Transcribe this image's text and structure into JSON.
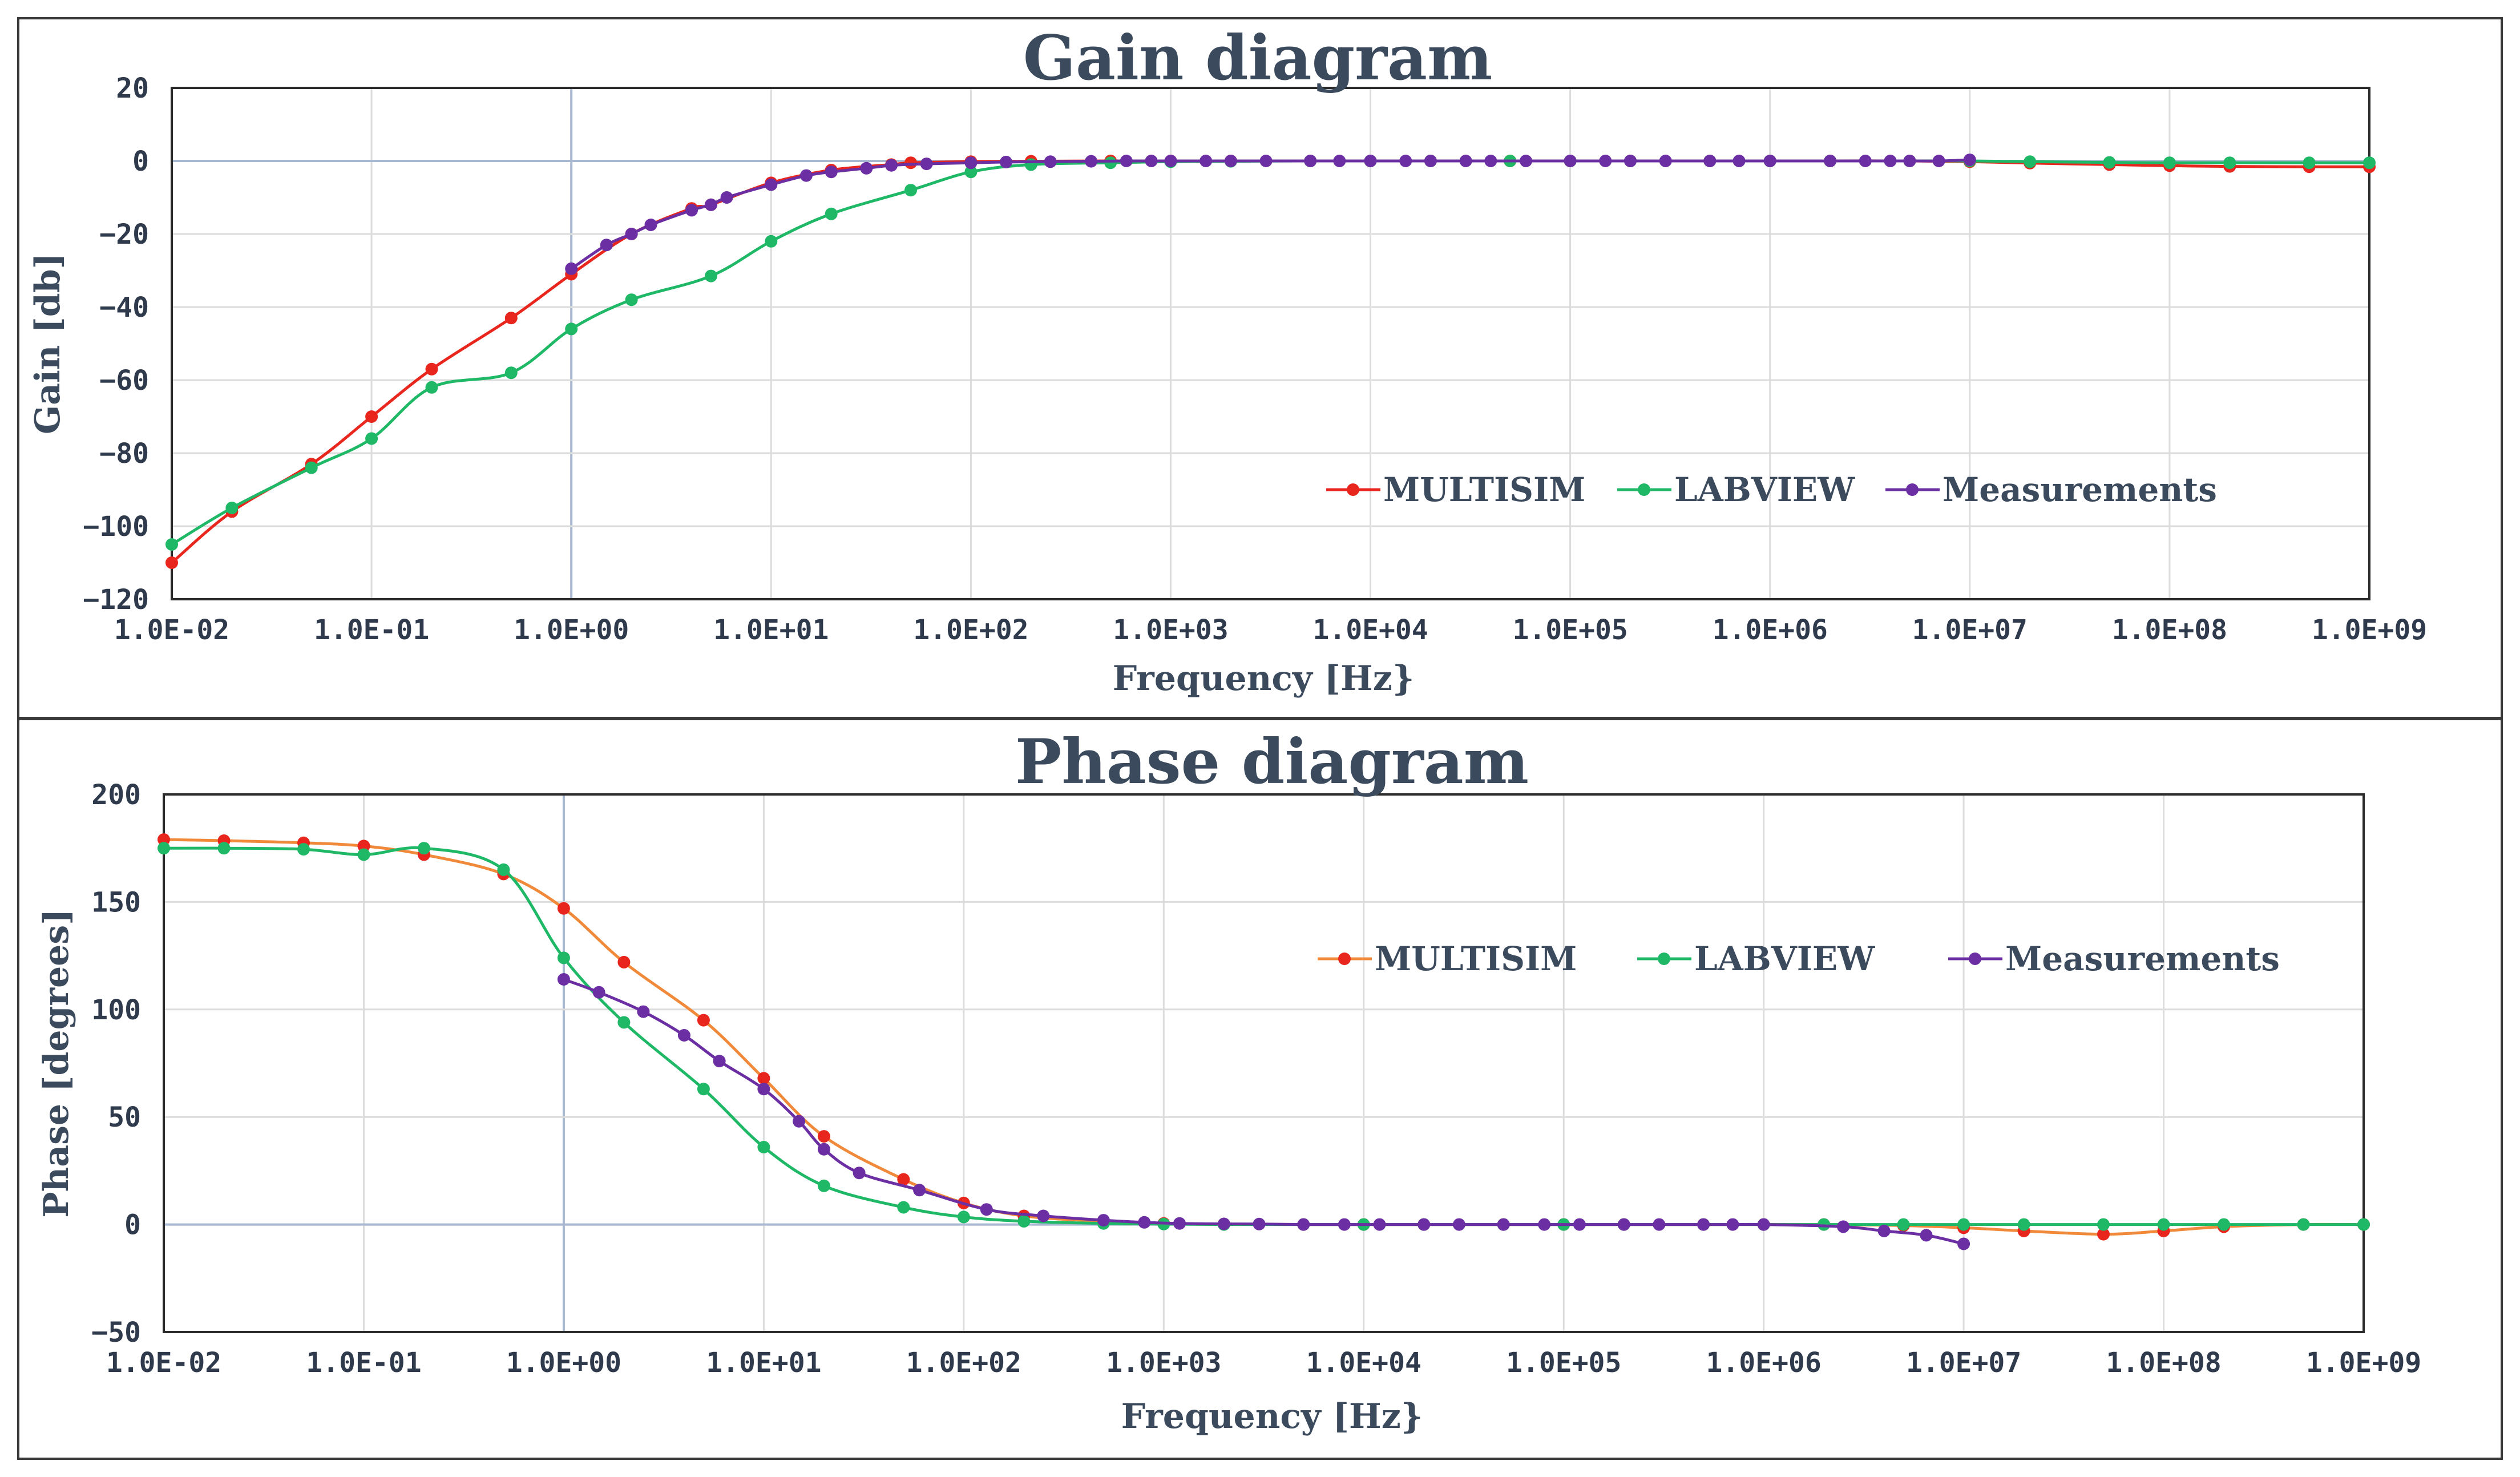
{
  "chart_data": [
    {
      "type": "line",
      "title": "Gain diagram",
      "xlabel": "Frequency [Hz}",
      "ylabel": "Gain [db]",
      "x_scale": "log",
      "xlim": [
        0.01,
        1000000000
      ],
      "ylim": [
        -120,
        20
      ],
      "grid": true,
      "legend": "center-right",
      "x_tick_labels": [
        "1.0E-02",
        "1.0E-01",
        "1.0E+00",
        "1.0E+01",
        "1.0E+02",
        "1.0E+03",
        "1.0E+04",
        "1.0E+05",
        "1.0E+06",
        "1.0E+07",
        "1.0E+08",
        "1.0E+09"
      ],
      "y_tick_labels": [
        "20",
        "0",
        "−20",
        "−40",
        "−60",
        "−80",
        "−100",
        "−120"
      ],
      "series": [
        {
          "name": "MULTISIM",
          "color": "#e8261d",
          "x": [
            0.01,
            0.02,
            0.05,
            0.1,
            0.2,
            0.5,
            1,
            2,
            4,
            5,
            10,
            20,
            40,
            50,
            100,
            200,
            500,
            1000,
            2000,
            5000,
            10000,
            20000,
            50000,
            100000,
            200000,
            500000,
            1000000,
            2000000,
            5000000,
            10000000,
            20000000,
            50000000,
            100000000,
            200000000,
            500000000,
            1000000000
          ],
          "y": [
            -110,
            -96,
            -83,
            -70,
            -57,
            -43,
            -31,
            -20,
            -13,
            -12,
            -6,
            -2.5,
            -1,
            -0.5,
            -0.2,
            -0.1,
            0,
            0,
            0,
            0,
            0,
            0,
            0,
            0,
            0,
            0,
            0,
            0,
            0,
            -0.2,
            -0.6,
            -1,
            -1.3,
            -1.5,
            -1.6,
            -1.6
          ]
        },
        {
          "name": "LABVIEW",
          "color": "#1fb866",
          "x": [
            0.01,
            0.02,
            0.05,
            0.1,
            0.2,
            0.5,
            1,
            2,
            5,
            10,
            20,
            50,
            100,
            200,
            500,
            1000,
            2000,
            5000,
            10000,
            20000,
            50000,
            100000,
            200000,
            500000,
            1000000,
            2000000,
            5000000,
            10000000,
            20000000,
            50000000,
            100000000,
            200000000,
            500000000,
            1000000000
          ],
          "y": [
            -105,
            -95,
            -84,
            -76,
            -62,
            -58,
            -46,
            -38,
            -31.5,
            -22,
            -14.5,
            -8,
            -3,
            -1,
            -0.5,
            -0.2,
            -0.1,
            0,
            0,
            0,
            0,
            0,
            0,
            0,
            0,
            0,
            0,
            0,
            -0.2,
            -0.4,
            -0.5,
            -0.5,
            -0.5,
            -0.5
          ]
        },
        {
          "name": "Measurements",
          "color": "#6b2fa3",
          "x": [
            1,
            1.5,
            2,
            2.5,
            4,
            5,
            6,
            10,
            15,
            20,
            30,
            40,
            60,
            100,
            150,
            250,
            400,
            600,
            800,
            1000,
            1500,
            2000,
            3000,
            5000,
            7000,
            10000,
            15000,
            20000,
            30000,
            40000,
            60000,
            100000,
            150000,
            200000,
            300000,
            500000,
            700000,
            1000000,
            2000000,
            3000000,
            4000000,
            5000000,
            7000000,
            10000000
          ],
          "y": [
            -29.5,
            -23,
            -20,
            -17.5,
            -13.5,
            -12,
            -10,
            -6.5,
            -4,
            -3,
            -2,
            -1.2,
            -0.8,
            -0.5,
            -0.3,
            -0.2,
            -0.1,
            0,
            0,
            0,
            0,
            0,
            0,
            0,
            0,
            0,
            0,
            0,
            0,
            0,
            0,
            0,
            0,
            0,
            0,
            0,
            0,
            0,
            0,
            0,
            0,
            0,
            0,
            0.3
          ]
        }
      ]
    },
    {
      "type": "line",
      "title": "Phase diagram",
      "xlabel": "Frequency [Hz}",
      "ylabel": "Phase [degrees]",
      "x_scale": "log",
      "xlim": [
        0.01,
        1000000000
      ],
      "ylim": [
        -50,
        200
      ],
      "grid": true,
      "legend": "top-right",
      "x_tick_labels": [
        "1.0E-02",
        "1.0E-01",
        "1.0E+00",
        "1.0E+01",
        "1.0E+02",
        "1.0E+03",
        "1.0E+04",
        "1.0E+05",
        "1.0E+06",
        "1.0E+07",
        "1.0E+08",
        "1.0E+09"
      ],
      "y_tick_labels": [
        "200",
        "150",
        "100",
        "50",
        "0",
        "−50"
      ],
      "series": [
        {
          "name": "MULTISIM",
          "color": "#f08a3a",
          "marker_color": "#e8261d",
          "x": [
            0.01,
            0.02,
            0.05,
            0.1,
            0.2,
            0.5,
            1,
            2,
            5,
            10,
            20,
            50,
            100,
            200,
            500,
            1000,
            2000,
            5000,
            10000,
            20000,
            50000,
            100000,
            200000,
            500000,
            1000000,
            2000000,
            5000000,
            10000000,
            20000000,
            50000000,
            100000000,
            200000000,
            500000000,
            1000000000
          ],
          "y": [
            179,
            178.5,
            177.5,
            176,
            172,
            163,
            147,
            122,
            95,
            68,
            41,
            21,
            10,
            4,
            1.5,
            0.5,
            0.2,
            0,
            0,
            0,
            0,
            0,
            0,
            0,
            0,
            0,
            -0.5,
            -1.5,
            -3,
            -4.5,
            -3,
            -1,
            0,
            0
          ]
        },
        {
          "name": "LABVIEW",
          "color": "#1fb866",
          "x": [
            0.01,
            0.02,
            0.05,
            0.1,
            0.2,
            0.5,
            1,
            2,
            5,
            10,
            20,
            50,
            100,
            200,
            500,
            1000,
            2000,
            5000,
            10000,
            20000,
            50000,
            100000,
            200000,
            500000,
            1000000,
            2000000,
            5000000,
            10000000,
            20000000,
            50000000,
            100000000,
            200000000,
            500000000,
            1000000000
          ],
          "y": [
            175,
            175,
            174.5,
            172,
            175,
            165,
            124,
            94,
            63,
            36,
            18,
            8,
            3.5,
            1.5,
            0.5,
            0.2,
            0,
            0,
            0,
            0,
            0,
            0,
            0,
            0,
            0,
            0,
            0,
            0,
            0,
            0,
            0,
            0,
            0,
            0
          ]
        },
        {
          "name": "Measurements",
          "color": "#6b2fa3",
          "x": [
            1,
            1.5,
            2.5,
            4,
            6,
            10,
            15,
            20,
            30,
            60,
            130,
            250,
            500,
            800,
            1200,
            2000,
            3000,
            5000,
            8000,
            12000,
            20000,
            30000,
            50000,
            80000,
            120000,
            200000,
            300000,
            500000,
            700000,
            1000000,
            2500000,
            4000000,
            6500000,
            10000000
          ],
          "y": [
            114,
            108,
            99,
            88,
            76,
            63,
            48,
            35,
            24,
            16,
            7,
            4,
            2,
            1,
            0.5,
            0.3,
            0.2,
            0,
            0,
            0,
            0,
            0,
            0,
            0,
            0,
            0,
            0,
            0,
            0,
            0,
            -1,
            -3,
            -5,
            -9
          ]
        }
      ]
    }
  ]
}
